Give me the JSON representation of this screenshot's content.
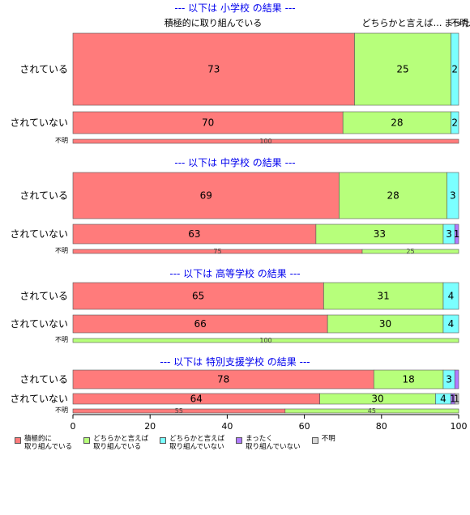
{
  "chart_data": {
    "type": "bar",
    "orientation": "horizontal",
    "stacked": true,
    "xlim": [
      0,
      100
    ],
    "x_ticks": [
      "0",
      "20",
      "40",
      "60",
      "80",
      "100"
    ],
    "colors": [
      "#ff7b7b",
      "#b7ff7b",
      "#7bffff",
      "#b07bff",
      "#d9d9d9"
    ],
    "top_annotations": [
      "積極的に取り組んでいる",
      "どちらかと言えば…",
      "まった…",
      "不明…"
    ],
    "series": [
      {
        "name": "積極的に\n取り組んでいる"
      },
      {
        "name": "どちらかと言えば\n取り組んでいる"
      },
      {
        "name": "どちらかと言えば\n取り組んでいない"
      },
      {
        "name": "まったく\n取り組んでいない"
      },
      {
        "name": "不明"
      }
    ],
    "panels": [
      {
        "title": "--- 以下は 小学校 の結果 ---",
        "bars": [
          {
            "label": "されている",
            "values": [
              73,
              25,
              2,
              0,
              0
            ],
            "shown": [
              "73",
              "25",
              "2",
              "",
              ""
            ]
          },
          {
            "label": "されていない",
            "values": [
              70,
              28,
              2,
              0,
              0
            ],
            "shown": [
              "70",
              "28",
              "2",
              "",
              ""
            ]
          },
          {
            "label": "不明",
            "values": [
              100,
              0,
              0,
              0,
              0
            ],
            "shown": [
              "100",
              "",
              "",
              "",
              ""
            ]
          }
        ]
      },
      {
        "title": "--- 以下は 中学校 の結果 ---",
        "bars": [
          {
            "label": "されている",
            "values": [
              69,
              28,
              3,
              0,
              0
            ],
            "shown": [
              "69",
              "28",
              "3",
              "",
              ""
            ]
          },
          {
            "label": "されていない",
            "values": [
              63,
              33,
              3,
              1,
              0
            ],
            "shown": [
              "63",
              "33",
              "3",
              "1",
              ""
            ]
          },
          {
            "label": "不明",
            "values": [
              75,
              25,
              0,
              0,
              0
            ],
            "shown": [
              "75",
              "25",
              "",
              "",
              ""
            ]
          }
        ]
      },
      {
        "title": "--- 以下は 高等学校 の結果 ---",
        "bars": [
          {
            "label": "されている",
            "values": [
              65,
              31,
              4,
              0,
              0
            ],
            "shown": [
              "65",
              "31",
              "4",
              "",
              ""
            ]
          },
          {
            "label": "されていない",
            "values": [
              66,
              30,
              4,
              0,
              0
            ],
            "shown": [
              "66",
              "30",
              "4",
              "",
              ""
            ]
          },
          {
            "label": "不明",
            "values": [
              0,
              100,
              0,
              0,
              0
            ],
            "shown": [
              "",
              "100",
              "",
              "",
              ""
            ]
          }
        ]
      },
      {
        "title": "--- 以下は 特別支援学校 の結果 ---",
        "bars": [
          {
            "label": "されている",
            "values": [
              78,
              18,
              3,
              1,
              0
            ],
            "shown": [
              "78",
              "18",
              "3",
              "",
              ""
            ]
          },
          {
            "label": "されていない",
            "values": [
              64,
              30,
              4,
              1,
              1
            ],
            "shown": [
              "64",
              "30",
              "4",
              "1",
              "1"
            ]
          },
          {
            "label": "不明",
            "values": [
              55,
              45,
              0,
              0,
              0
            ],
            "shown": [
              "55",
              "45",
              "",
              "",
              ""
            ]
          }
        ]
      }
    ]
  }
}
